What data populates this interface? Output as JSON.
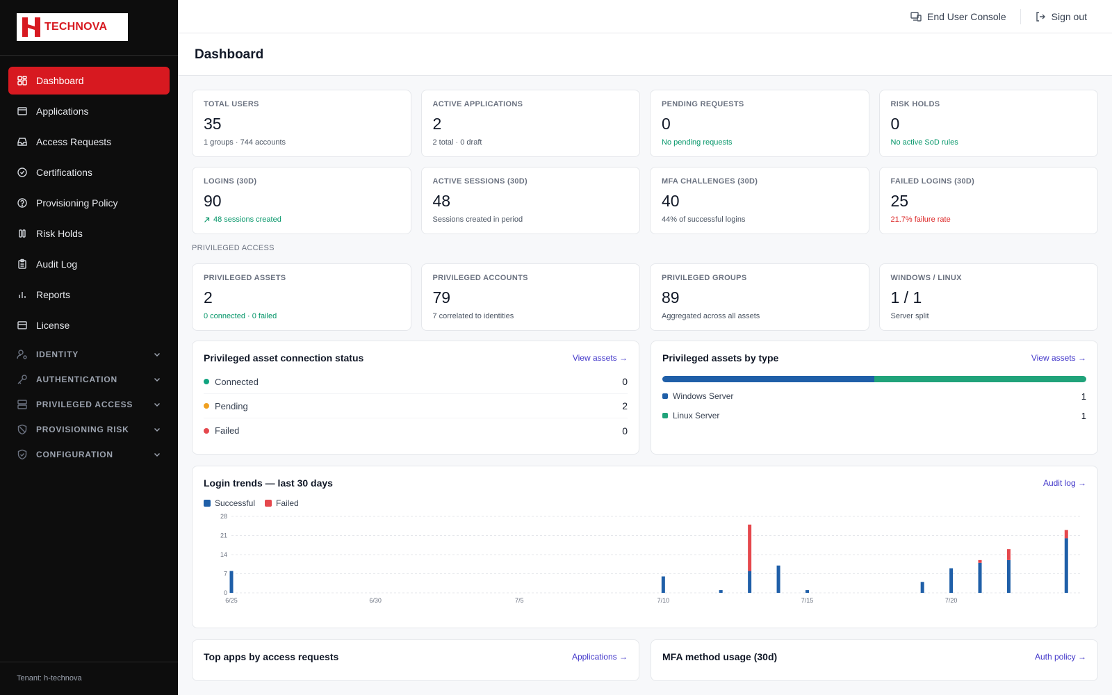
{
  "brand": {
    "name": "TECHNOVA",
    "color": "#d71920"
  },
  "sidebar": {
    "items": [
      {
        "label": "Dashboard",
        "icon": "dashboard-icon",
        "active": true
      },
      {
        "label": "Applications",
        "icon": "window-icon"
      },
      {
        "label": "Access Requests",
        "icon": "inbox-icon"
      },
      {
        "label": "Certifications",
        "icon": "check-circle-icon"
      },
      {
        "label": "Provisioning Policy",
        "icon": "policy-icon"
      },
      {
        "label": "Risk Holds",
        "icon": "pause-icon"
      },
      {
        "label": "Audit Log",
        "icon": "clipboard-icon"
      },
      {
        "label": "Reports",
        "icon": "bar-chart-icon"
      },
      {
        "label": "License",
        "icon": "card-icon"
      }
    ],
    "sections": [
      {
        "label": "IDENTITY",
        "icon": "user-gear-icon"
      },
      {
        "label": "AUTHENTICATION",
        "icon": "key-icon"
      },
      {
        "label": "PRIVILEGED ACCESS",
        "icon": "server-icon"
      },
      {
        "label": "PROVISIONING RISK",
        "icon": "ban-icon"
      },
      {
        "label": "CONFIGURATION",
        "icon": "shield-icon"
      }
    ],
    "tenant": "Tenant: h-technova"
  },
  "topbar": {
    "console_label": "End User Console",
    "signout_label": "Sign out"
  },
  "page": {
    "title": "Dashboard"
  },
  "stats_row1": [
    {
      "label": "TOTAL USERS",
      "value": "35",
      "sub": "1 groups · 744 accounts",
      "tone": ""
    },
    {
      "label": "ACTIVE APPLICATIONS",
      "value": "2",
      "sub": "2 total · 0 draft",
      "tone": ""
    },
    {
      "label": "PENDING REQUESTS",
      "value": "0",
      "sub": "No pending requests",
      "tone": "green"
    },
    {
      "label": "RISK HOLDS",
      "value": "0",
      "sub": "No active SoD rules",
      "tone": "green"
    }
  ],
  "stats_row2": [
    {
      "label": "LOGINS (30D)",
      "value": "90",
      "sub": "48 sessions created",
      "tone": "green",
      "arrow": true
    },
    {
      "label": "ACTIVE SESSIONS (30D)",
      "value": "48",
      "sub": "Sessions created in period",
      "tone": ""
    },
    {
      "label": "MFA CHALLENGES (30D)",
      "value": "40",
      "sub": "44% of successful logins",
      "tone": ""
    },
    {
      "label": "FAILED LOGINS (30D)",
      "value": "25",
      "sub": "21.7% failure rate",
      "tone": "red"
    }
  ],
  "privileged": {
    "section_label": "PRIVILEGED ACCESS",
    "stats": [
      {
        "label": "PRIVILEGED ASSETS",
        "value": "2",
        "sub": "0 connected · 0 failed",
        "tone": "green"
      },
      {
        "label": "PRIVILEGED ACCOUNTS",
        "value": "79",
        "sub": "7 correlated to identities",
        "tone": ""
      },
      {
        "label": "PRIVILEGED GROUPS",
        "value": "89",
        "sub": "Aggregated across all assets",
        "tone": ""
      },
      {
        "label": "WINDOWS / LINUX",
        "value": "1 / 1",
        "sub": "Server split",
        "tone": ""
      }
    ]
  },
  "connection_panel": {
    "title": "Privileged asset connection status",
    "link": "View assets →",
    "rows": [
      {
        "label": "Connected",
        "value": "0",
        "color": "#10a37f"
      },
      {
        "label": "Pending",
        "value": "2",
        "color": "#f0a020"
      },
      {
        "label": "Failed",
        "value": "0",
        "color": "#e5484d"
      }
    ]
  },
  "type_panel": {
    "title": "Privileged assets by type",
    "link": "View assets →",
    "rows": [
      {
        "label": "Windows Server",
        "value": "1",
        "count": 1,
        "color": "#1f5fa8"
      },
      {
        "label": "Linux Server",
        "value": "1",
        "count": 1,
        "color": "#20a37a"
      }
    ]
  },
  "login_panel": {
    "title": "Login trends — last 30 days",
    "link": "Audit log →",
    "legend": [
      {
        "label": "Successful",
        "color": "#1f5fa8"
      },
      {
        "label": "Failed",
        "color": "#e5484d"
      }
    ]
  },
  "chart_data": {
    "type": "bar",
    "stacked": true,
    "categories": [
      "6/25",
      "6/26",
      "6/27",
      "6/28",
      "6/29",
      "6/30",
      "7/1",
      "7/2",
      "7/3",
      "7/4",
      "7/5",
      "7/6",
      "7/7",
      "7/8",
      "7/9",
      "7/10",
      "7/11",
      "7/12",
      "7/13",
      "7/14",
      "7/15",
      "7/16",
      "7/17",
      "7/18",
      "7/19",
      "7/20",
      "7/21",
      "7/22",
      "7/23",
      "7/24"
    ],
    "tick_labels": [
      "6/25",
      "6/30",
      "7/5",
      "7/10",
      "7/15",
      "7/20"
    ],
    "tick_label_indices": [
      0,
      5,
      10,
      15,
      20,
      25
    ],
    "series": [
      {
        "name": "Successful",
        "values": [
          8,
          0,
          0,
          0,
          0,
          0,
          0,
          0,
          0,
          0,
          0,
          0,
          0,
          0,
          0,
          6,
          0,
          1,
          8,
          10,
          1,
          0,
          0,
          0,
          4,
          9,
          11,
          12,
          0,
          20
        ]
      },
      {
        "name": "Failed",
        "values": [
          0,
          0,
          0,
          0,
          0,
          0,
          0,
          0,
          0,
          0,
          0,
          0,
          0,
          0,
          0,
          0,
          0,
          0,
          17,
          0,
          0,
          0,
          0,
          0,
          0,
          0,
          1,
          4,
          0,
          3
        ]
      }
    ],
    "yticks": [
      0,
      7,
      14,
      21,
      28
    ],
    "ylim": [
      0,
      28
    ],
    "grid": true
  },
  "bottom_panels": [
    {
      "title": "Top apps by access requests",
      "link": "Applications →"
    },
    {
      "title": "MFA method usage (30d)",
      "link": "Auth policy →"
    }
  ]
}
